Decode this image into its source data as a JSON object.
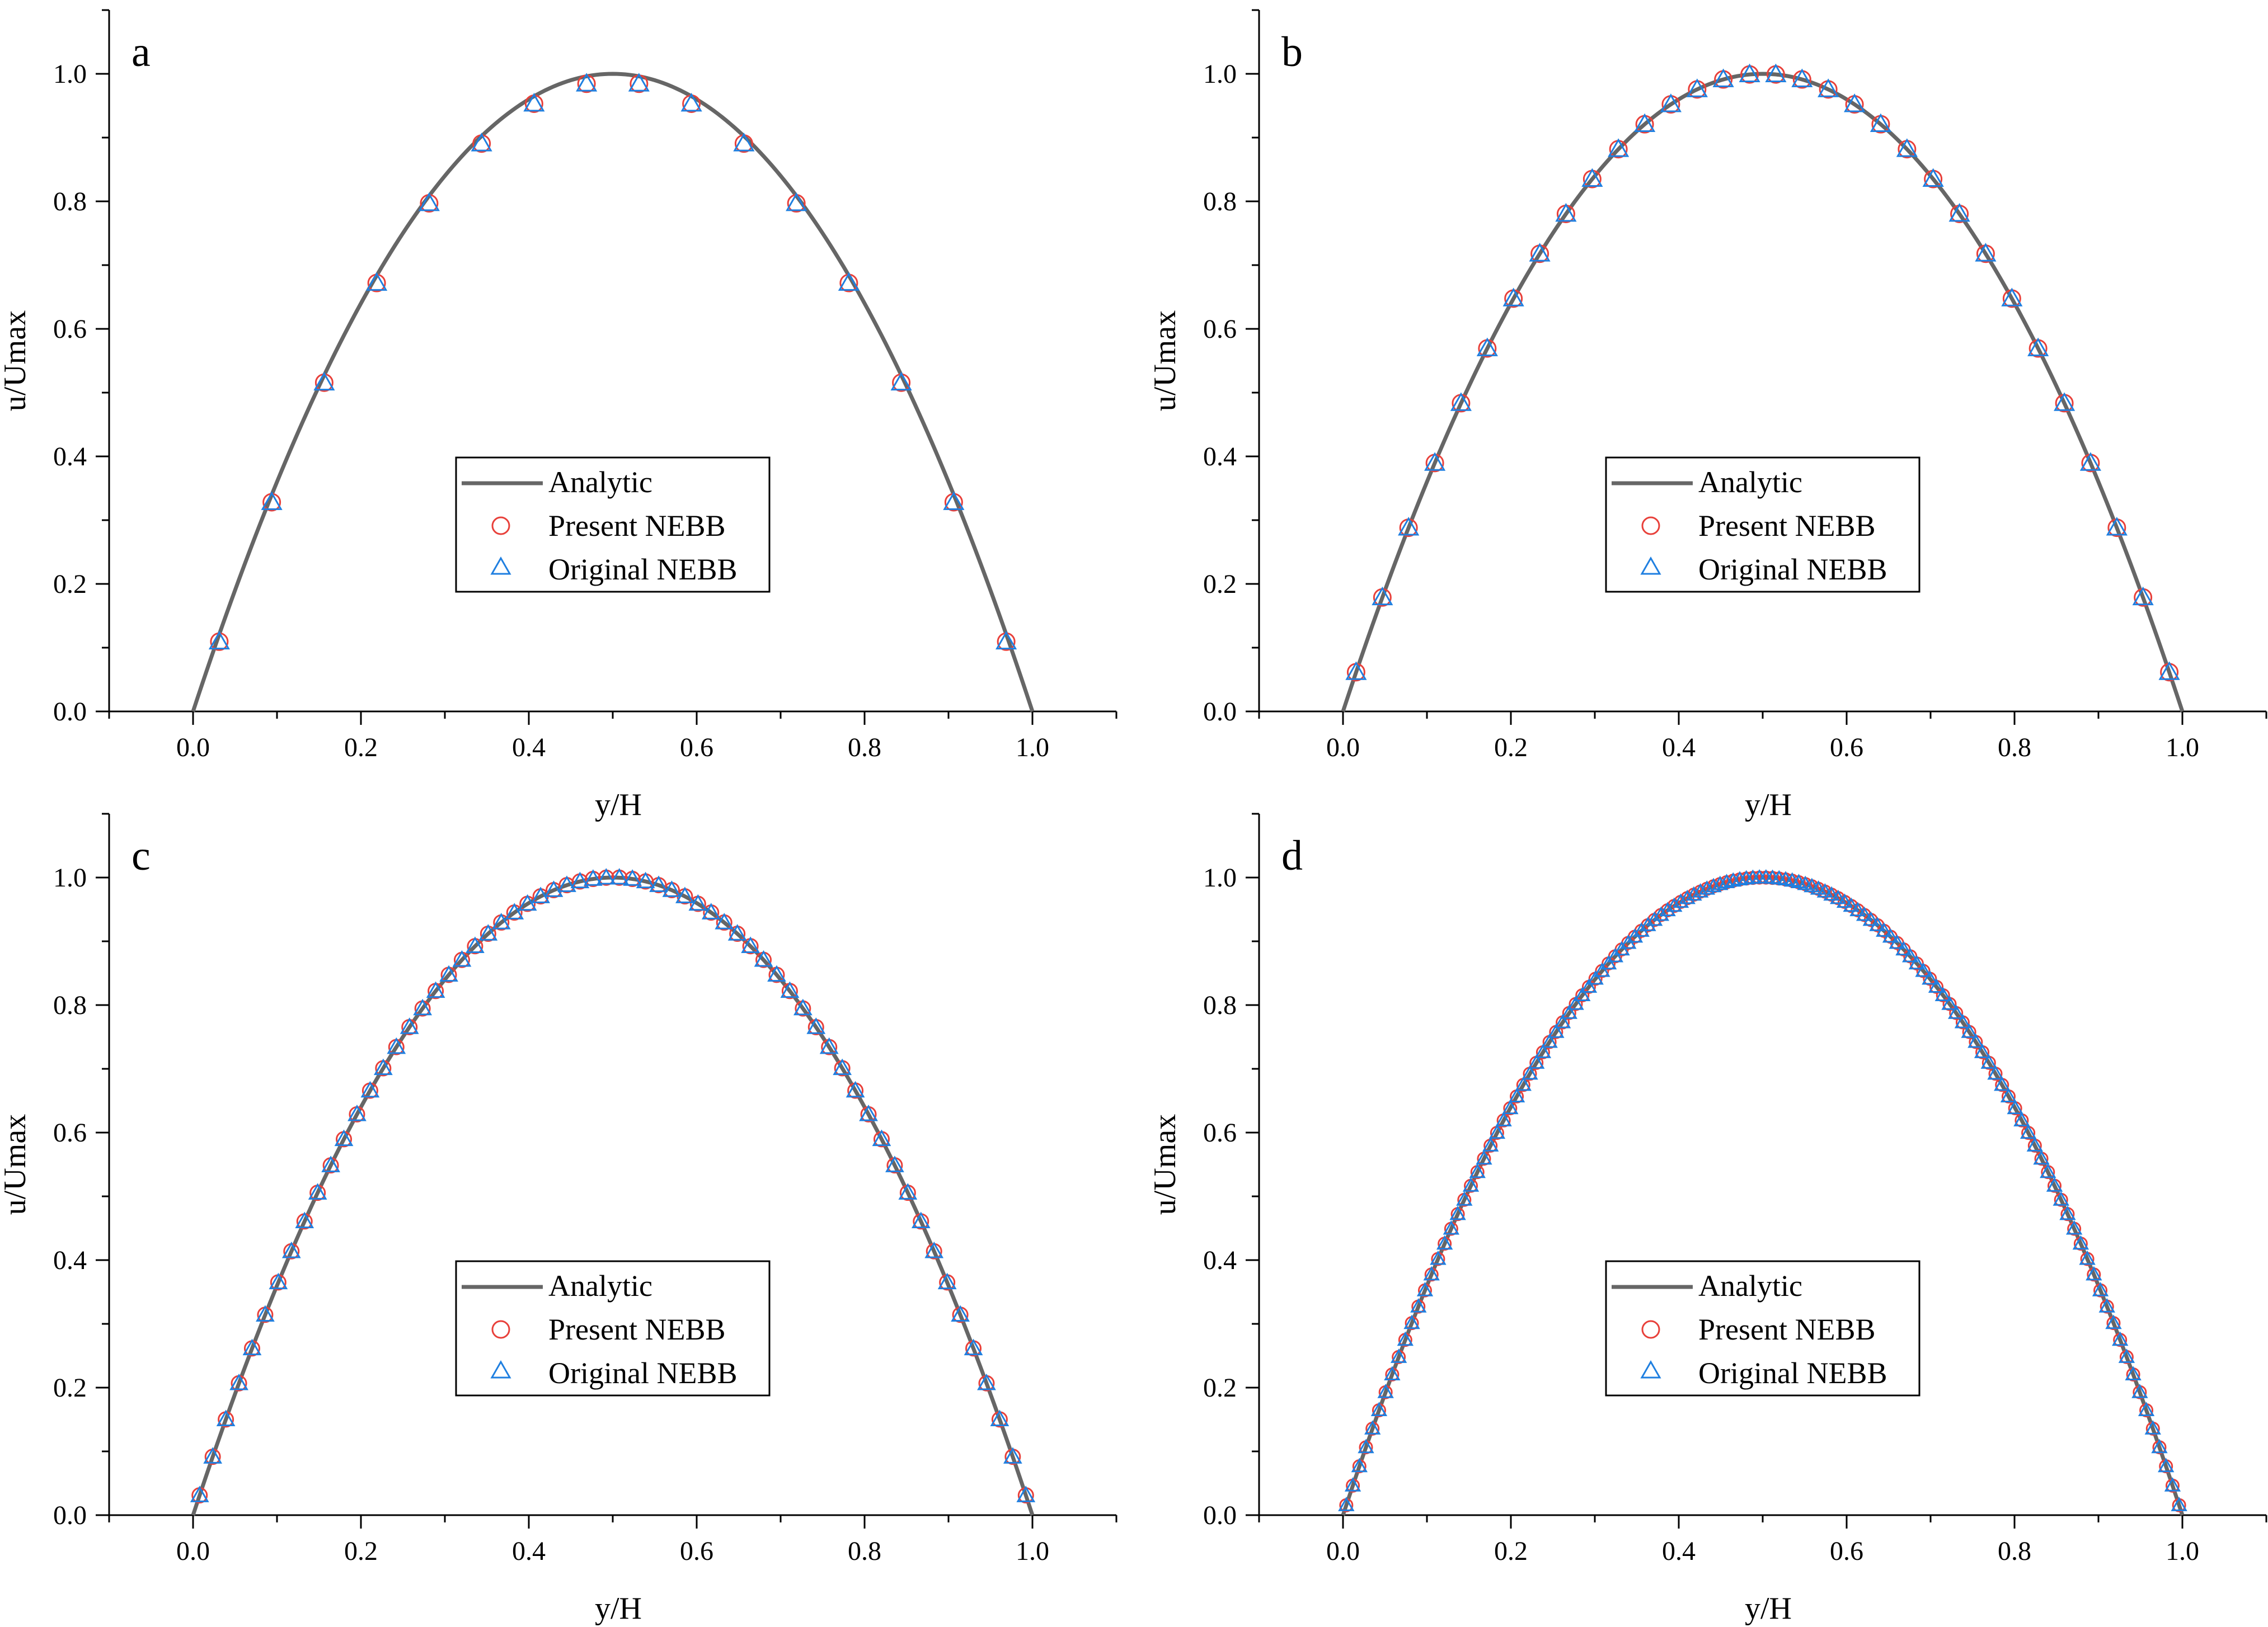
{
  "colors": {
    "analytic": "#666666",
    "present": "#e8403a",
    "original": "#1f7fe0",
    "axis": "#000000"
  },
  "chart_data": [
    {
      "panel_label": "a",
      "type": "line+scatter",
      "xlabel": "y/H",
      "ylabel": "u/Umax",
      "xlim": [
        -0.1,
        1.1
      ],
      "ylim": [
        0,
        1.1
      ],
      "xticks": [
        "0.0",
        "0.2",
        "0.4",
        "0.6",
        "0.8",
        "1.0"
      ],
      "yticks": [
        "0.0",
        "0.2",
        "0.4",
        "0.6",
        "0.8",
        "1.0"
      ],
      "legend": [
        "Analytic",
        "Present NEBB",
        "Original NEBB"
      ],
      "legend_position": "center-bottom",
      "analytic": "u/Umax = 4 (y/H) (1 - y/H)",
      "x": [
        0.03125,
        0.09375,
        0.15625,
        0.21875,
        0.28125,
        0.34375,
        0.40625,
        0.46875,
        0.53125,
        0.59375,
        0.65625,
        0.71875,
        0.78125,
        0.84375,
        0.90625,
        0.96875
      ],
      "series": [
        {
          "name": "Present NEBB",
          "values": [
            0.1094,
            0.3281,
            0.5156,
            0.6719,
            0.7969,
            0.8906,
            0.9531,
            0.9844,
            0.9844,
            0.9531,
            0.8906,
            0.7969,
            0.6719,
            0.5156,
            0.3281,
            0.1094
          ]
        },
        {
          "name": "Original NEBB",
          "values": [
            0.1094,
            0.3281,
            0.5156,
            0.6719,
            0.7969,
            0.8906,
            0.9531,
            0.9844,
            0.9844,
            0.9531,
            0.8906,
            0.7969,
            0.6719,
            0.5156,
            0.3281,
            0.1094
          ]
        }
      ]
    },
    {
      "panel_label": "b",
      "type": "line+scatter",
      "xlabel": "y/H",
      "ylabel": "u/Umax",
      "xlim": [
        -0.1,
        1.1
      ],
      "ylim": [
        0,
        1.1
      ],
      "xticks": [
        "0.0",
        "0.2",
        "0.4",
        "0.6",
        "0.8",
        "1.0"
      ],
      "yticks": [
        "0.0",
        "0.2",
        "0.4",
        "0.6",
        "0.8",
        "1.0"
      ],
      "legend": [
        "Analytic",
        "Present NEBB",
        "Original NEBB"
      ],
      "legend_position": "center-bottom",
      "analytic": "u/Umax = 4 (y/H) (1 - y/H)",
      "x": [
        0.0156,
        0.0469,
        0.0781,
        0.1094,
        0.1406,
        0.1719,
        0.2031,
        0.2344,
        0.2656,
        0.2969,
        0.3281,
        0.3594,
        0.3906,
        0.4219,
        0.4531,
        0.4844,
        0.5156,
        0.5469,
        0.5781,
        0.6094,
        0.6406,
        0.6719,
        0.7031,
        0.7344,
        0.7656,
        0.7969,
        0.8281,
        0.8594,
        0.8906,
        0.9219,
        0.9531,
        0.9844
      ],
      "series": [
        {
          "name": "Present NEBB",
          "values": [
            0.0615,
            0.1787,
            0.2881,
            0.3896,
            0.4834,
            0.5693,
            0.6475,
            0.7178,
            0.7803,
            0.835,
            0.8818,
            0.9209,
            0.9521,
            0.9756,
            0.9912,
            0.999,
            0.999,
            0.9912,
            0.9756,
            0.9521,
            0.9209,
            0.8818,
            0.835,
            0.7803,
            0.7178,
            0.6475,
            0.5693,
            0.4834,
            0.3896,
            0.2881,
            0.1787,
            0.0615
          ]
        },
        {
          "name": "Original NEBB",
          "values": [
            0.0615,
            0.1787,
            0.2881,
            0.3896,
            0.4834,
            0.5693,
            0.6475,
            0.7178,
            0.7803,
            0.835,
            0.8818,
            0.9209,
            0.9521,
            0.9756,
            0.9912,
            0.999,
            0.999,
            0.9912,
            0.9756,
            0.9521,
            0.9209,
            0.8818,
            0.835,
            0.7803,
            0.7178,
            0.6475,
            0.5693,
            0.4834,
            0.3896,
            0.2881,
            0.1787,
            0.0615
          ]
        }
      ]
    },
    {
      "panel_label": "c",
      "type": "line+scatter",
      "xlabel": "y/H",
      "ylabel": "u/Umax",
      "xlim": [
        -0.1,
        1.1
      ],
      "ylim": [
        0,
        1.1
      ],
      "xticks": [
        "0.0",
        "0.2",
        "0.4",
        "0.6",
        "0.8",
        "1.0"
      ],
      "yticks": [
        "0.0",
        "0.2",
        "0.4",
        "0.6",
        "0.8",
        "1.0"
      ],
      "legend": [
        "Analytic",
        "Present NEBB",
        "Original NEBB"
      ],
      "legend_position": "center-bottom",
      "analytic": "u/Umax = 4 (y/H) (1 - y/H)",
      "points": 64,
      "x_range": [
        0.0078,
        0.9922
      ],
      "series": [
        {
          "name": "Present NEBB",
          "formula": "4x(1-x) at 64 cell centers"
        },
        {
          "name": "Original NEBB",
          "formula": "4x(1-x) at 64 cell centers"
        }
      ]
    },
    {
      "panel_label": "d",
      "type": "line+scatter",
      "xlabel": "y/H",
      "ylabel": "u/Umax",
      "xlim": [
        -0.1,
        1.1
      ],
      "ylim": [
        0,
        1.1
      ],
      "xticks": [
        "0.0",
        "0.2",
        "0.4",
        "0.6",
        "0.8",
        "1.0"
      ],
      "yticks": [
        "0.0",
        "0.2",
        "0.4",
        "0.6",
        "0.8",
        "1.0"
      ],
      "legend": [
        "Analytic",
        "Present NEBB",
        "Original NEBB"
      ],
      "legend_position": "center-bottom",
      "analytic": "u/Umax = 4 (y/H) (1 - y/H)",
      "points": 128,
      "x_range": [
        0.0039,
        0.9961
      ],
      "series": [
        {
          "name": "Present NEBB",
          "formula": "4x(1-x) at 128 cell centers"
        },
        {
          "name": "Original NEBB",
          "formula": "4x(1-x) at 128 cell centers"
        }
      ]
    }
  ]
}
